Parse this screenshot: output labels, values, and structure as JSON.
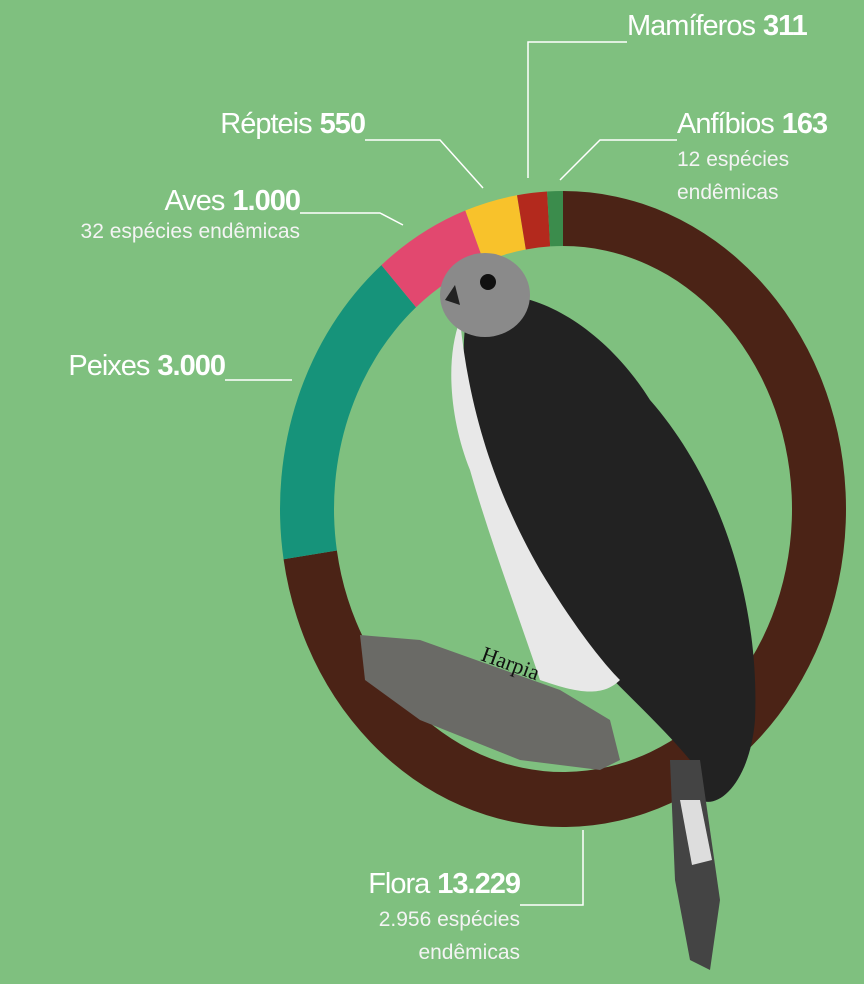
{
  "chart_data": {
    "type": "donut",
    "categories": [
      "Flora",
      "Peixes",
      "Aves",
      "Répteis",
      "Mamíferos",
      "Anfíbios"
    ],
    "values": [
      13229,
      3000,
      1000,
      550,
      311,
      163
    ],
    "value_labels": [
      "13.229",
      "3.000",
      "1.000",
      "550",
      "311",
      "163"
    ],
    "notes": [
      "2.956 espécies endêmicas",
      null,
      "32 espécies endêmicas",
      null,
      null,
      "12 espécies endêmicas"
    ],
    "colors": [
      "#4b2316",
      "#16937a",
      "#e2486f",
      "#f8c22b",
      "#b3291d",
      "#3b8c4c"
    ],
    "image_caption": "Harpia"
  }
}
